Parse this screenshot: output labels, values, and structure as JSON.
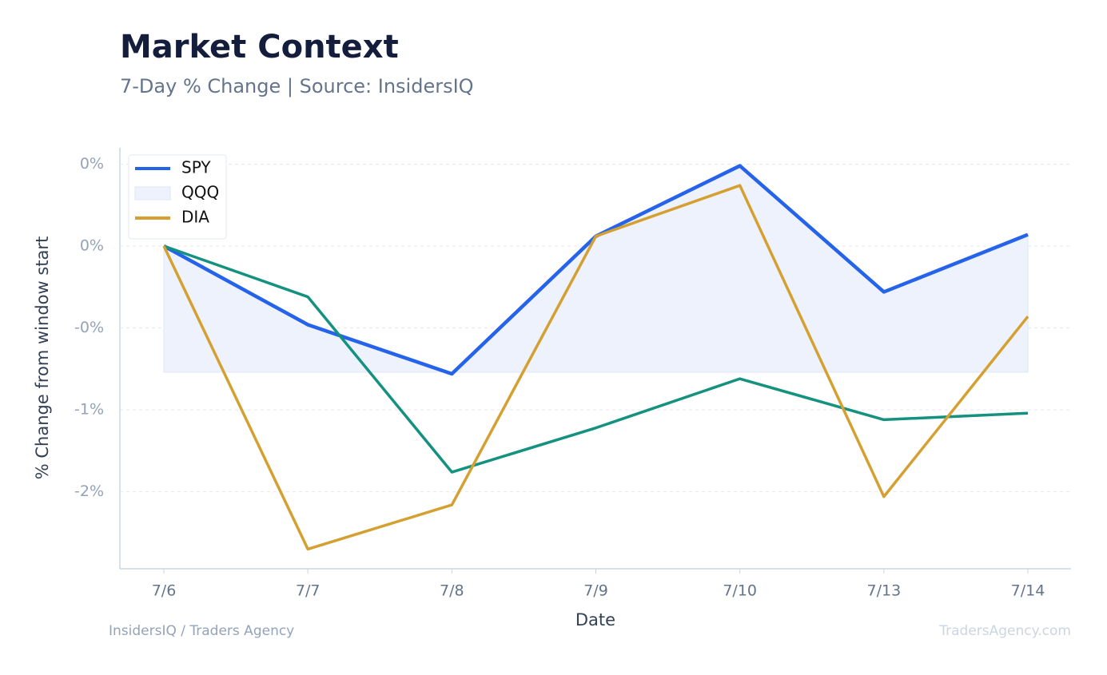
{
  "chart_data": {
    "type": "line",
    "title": "Market Context",
    "subtitle": "7-Day % Change | Source: InsidersIQ",
    "xlabel": "Date",
    "ylabel": "% Change from window start",
    "footer_left": "InsidersIQ / Traders Agency",
    "footer_right": "TradersAgency.com",
    "categories": [
      "7/6",
      "7/7",
      "7/8",
      "7/9",
      "7/10",
      "7/13",
      "7/14"
    ],
    "series": [
      {
        "name": "SPY",
        "color": "#2563eb",
        "values": [
          0,
          -0.48,
          -0.78,
          0.06,
          0.49,
          -0.28,
          0.07
        ]
      },
      {
        "color": "#14917f",
        "values": [
          0,
          -0.31,
          -1.38,
          -1.11,
          -0.81,
          -1.06,
          -1.02
        ]
      },
      {
        "name": "DIA",
        "color": "#d4a032",
        "values": [
          0,
          -1.85,
          -1.58,
          0.06,
          0.37,
          -1.53,
          -0.43
        ]
      }
    ],
    "fill": {
      "name": "QQQ",
      "color": "#eef2fc",
      "lower": -0.77
    },
    "ylim": [
      -1.97,
      0.6
    ],
    "yticks": [
      {
        "value": 0.5,
        "label": "0%"
      },
      {
        "value": 0,
        "label": "0%"
      },
      {
        "value": -0.5,
        "label": "-0%"
      },
      {
        "value": -1,
        "label": "-1%"
      },
      {
        "value": -1.5,
        "label": "-2%"
      }
    ],
    "grid": true,
    "legend": "upper left"
  }
}
